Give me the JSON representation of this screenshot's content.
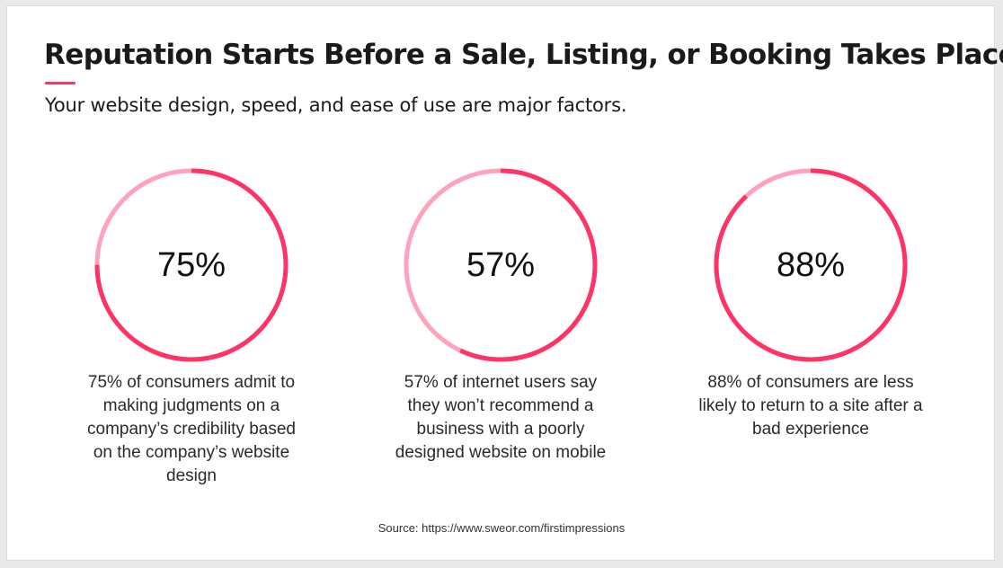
{
  "slide": {
    "title": "Reputation Starts Before a Sale, Listing, or Booking Takes Place",
    "subtitle": "Your website design, speed, and ease of use are major factors.",
    "source": "Source: https://www.sweor.com/firstimpressions"
  },
  "colors": {
    "accent": "#ff3366",
    "ring_remainder": "#ffa3bc",
    "text": "#1a1a1a"
  },
  "chart_data": [
    {
      "type": "pie",
      "value": 75,
      "max": 100,
      "center_label": "75%",
      "description": "75% of consumers admit to making judgments on a company’s credibility based on the company’s website design"
    },
    {
      "type": "pie",
      "value": 57,
      "max": 100,
      "center_label": "57%",
      "description": "57% of internet users say they won’t recommend a business with a poorly designed website on mobile"
    },
    {
      "type": "pie",
      "value": 88,
      "max": 100,
      "center_label": "88%",
      "description": "88% of consumers are less likely to return to a site after a bad experience"
    }
  ]
}
